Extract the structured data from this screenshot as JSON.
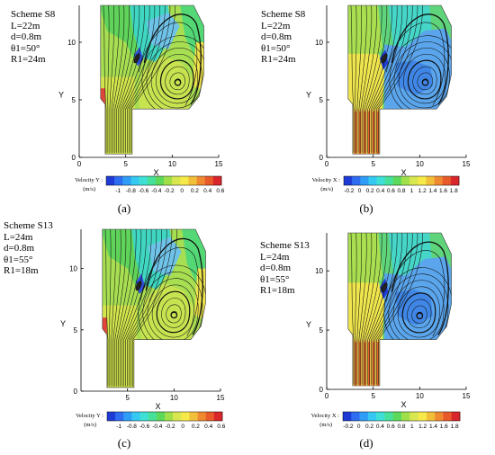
{
  "figure": {
    "captions": [
      "(a)",
      "(b)",
      "(c)",
      "(d)"
    ]
  },
  "chart_data": [
    {
      "type": "heatmap",
      "panel": "a",
      "scheme": "Scheme S8",
      "params": [
        "L=22m",
        "d=0.8m",
        "θ1=50°",
        "R1=24m"
      ],
      "xlabel": "X",
      "ylabel": "Y",
      "xlim": [
        0,
        15
      ],
      "ylim": [
        0,
        13.2
      ],
      "xticks": [
        "0",
        "5",
        "10",
        "15"
      ],
      "yticks": [
        "0",
        "5",
        "10"
      ],
      "colorbar": {
        "title": "Velocity Y :",
        "unit": "(m/s)",
        "ticks": [
          "-1",
          "-0.8",
          "-0.6",
          "-0.4",
          "-0.2",
          "0",
          "0.2",
          "0.4",
          "0.6"
        ],
        "colors": [
          "#1f3bd6",
          "#2e6cf0",
          "#2f9df5",
          "#35c8f2",
          "#3ee0d6",
          "#47e09a",
          "#5cd85a",
          "#9fe04a",
          "#d8e650",
          "#f6e94a",
          "#f2bf3a",
          "#ef8a30",
          "#e85a2a",
          "#d8262a"
        ]
      },
      "vortex_center": [
        10.6,
        6.5
      ]
    },
    {
      "type": "heatmap",
      "panel": "b",
      "scheme": "Scheme S8",
      "params": [
        "L=22m",
        "d=0.8m",
        "θ1=50°",
        "R1=24m"
      ],
      "xlabel": "X",
      "ylabel": "Y",
      "xlim": [
        0,
        15
      ],
      "ylim": [
        0,
        13.2
      ],
      "xticks": [
        "0",
        "5",
        "10",
        "15"
      ],
      "yticks": [
        "0",
        "5",
        "10"
      ],
      "colorbar": {
        "title": "Velocity X :",
        "unit": "(m/s)",
        "ticks": [
          "-0.2",
          "0",
          "0.2",
          "0.4",
          "0.6",
          "0.8",
          "1",
          "1.2",
          "1.4",
          "1.6",
          "1.8"
        ],
        "colors": [
          "#1f3bd6",
          "#2e6cf0",
          "#2f9df5",
          "#35c8f2",
          "#3ee0d6",
          "#47e09a",
          "#5cd85a",
          "#9fe04a",
          "#d8e650",
          "#f6e94a",
          "#f2bf3a",
          "#ef8a30",
          "#e85a2a",
          "#d8262a"
        ]
      },
      "vortex_center": [
        10.6,
        6.5
      ]
    },
    {
      "type": "heatmap",
      "panel": "c",
      "scheme": "Scheme S13",
      "params": [
        "L=24m",
        "d=0.8m",
        "θ1=55°",
        "R1=18m"
      ],
      "xlabel": "X",
      "ylabel": "Y",
      "xlim": [
        0,
        15
      ],
      "ylim": [
        0,
        13.2
      ],
      "xticks": [
        "5",
        "10",
        "15"
      ],
      "yticks": [
        "0",
        "5",
        "10"
      ],
      "colorbar": {
        "title": "Velocity Y :",
        "unit": "(m/s)",
        "ticks": [
          "-1",
          "-0.8",
          "-0.6",
          "-0.4",
          "-0.2",
          "0",
          "0.2",
          "0.4",
          "0.6"
        ],
        "colors": [
          "#1f3bd6",
          "#2e6cf0",
          "#2f9df5",
          "#35c8f2",
          "#3ee0d6",
          "#47e09a",
          "#5cd85a",
          "#9fe04a",
          "#d8e650",
          "#f6e94a",
          "#f2bf3a",
          "#ef8a30",
          "#e85a2a",
          "#d8262a"
        ]
      },
      "vortex_center": [
        10.0,
        6.2
      ]
    },
    {
      "type": "heatmap",
      "panel": "d",
      "scheme": "Scheme S13",
      "params": [
        "L=24m",
        "d=0.8m",
        "θ1=55°",
        "R1=18m"
      ],
      "xlabel": "X",
      "ylabel": "Y",
      "xlim": [
        0,
        15
      ],
      "ylim": [
        0,
        13.2
      ],
      "xticks": [
        "0",
        "5",
        "10",
        "15"
      ],
      "yticks": [
        "0",
        "5",
        "10"
      ],
      "colorbar": {
        "title": "Velocity X :",
        "unit": "(m/s)",
        "ticks": [
          "-0.2",
          "0",
          "0.2",
          "0.4",
          "0.6",
          "0.8",
          "1",
          "1.2",
          "1.4",
          "1.6",
          "1.8"
        ],
        "colors": [
          "#1f3bd6",
          "#2e6cf0",
          "#2f9df5",
          "#35c8f2",
          "#3ee0d6",
          "#47e09a",
          "#5cd85a",
          "#9fe04a",
          "#d8e650",
          "#f6e94a",
          "#f2bf3a",
          "#ef8a30",
          "#e85a2a",
          "#d8262a"
        ]
      },
      "vortex_center": [
        10.0,
        6.2
      ]
    }
  ]
}
